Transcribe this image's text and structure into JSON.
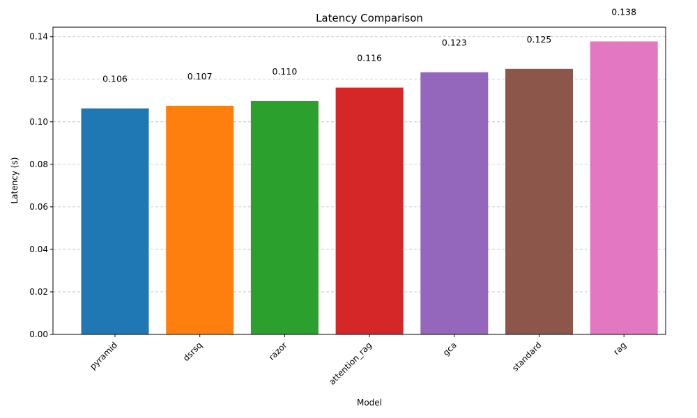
{
  "chart_data": {
    "type": "bar",
    "title": "Latency Comparison",
    "xlabel": "Model",
    "ylabel": "Latency (s)",
    "categories": [
      "pyramid",
      "dsrsq",
      "razor",
      "attention_rag",
      "gca",
      "standard",
      "rag"
    ],
    "values": [
      0.1063,
      0.1075,
      0.1098,
      0.1161,
      0.1233,
      0.1249,
      0.1378
    ],
    "value_labels": [
      "0.106",
      "0.107",
      "0.110",
      "0.116",
      "0.123",
      "0.125",
      "0.138"
    ],
    "colors": [
      "#1f77b4",
      "#ff7f0e",
      "#2ca02c",
      "#d62728",
      "#9467bd",
      "#8c564b",
      "#e377c2"
    ],
    "ylim": [
      0,
      0.1445
    ],
    "yticks": [
      0.0,
      0.02,
      0.04,
      0.06,
      0.08,
      0.1,
      0.12,
      0.14
    ],
    "ytick_labels": [
      "0.00",
      "0.02",
      "0.04",
      "0.06",
      "0.08",
      "0.10",
      "0.12",
      "0.14"
    ],
    "grid": "y-dashed",
    "legend": "none"
  }
}
